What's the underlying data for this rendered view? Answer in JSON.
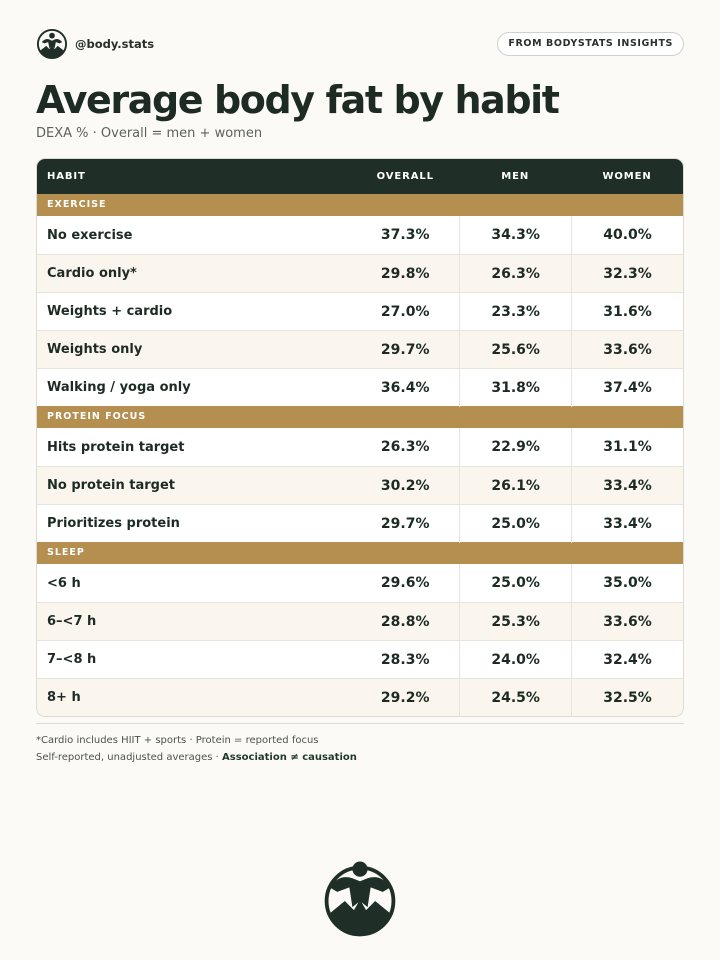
{
  "brand": {
    "handle": "@body.stats",
    "logo_icon": "mountain-figure-icon"
  },
  "header": {
    "source_label": "FROM BODYSTATS INSIGHTS"
  },
  "title": "Average body fat by habit",
  "subtitle": "DEXA % · Overall = men + women",
  "colors": {
    "header_bg": "#1f2f27",
    "section_bg": "#b58f4f",
    "text": "#1e2b24",
    "alt_row": "#faf6ee"
  },
  "chart_data": {
    "type": "table",
    "columns": [
      "HABIT",
      "OVERALL",
      "MEN",
      "WOMEN"
    ],
    "sections": [
      {
        "name": "EXERCISE",
        "rows": [
          {
            "habit": "No exercise",
            "overall": "37.3%",
            "men": "34.3%",
            "women": "40.0%"
          },
          {
            "habit": "Cardio only*",
            "overall": "29.8%",
            "men": "26.3%",
            "women": "32.3%"
          },
          {
            "habit": "Weights + cardio",
            "overall": "27.0%",
            "men": "23.3%",
            "women": "31.6%"
          },
          {
            "habit": "Weights only",
            "overall": "29.7%",
            "men": "25.6%",
            "women": "33.6%"
          },
          {
            "habit": "Walking / yoga only",
            "overall": "36.4%",
            "men": "31.8%",
            "women": "37.4%"
          }
        ]
      },
      {
        "name": "PROTEIN FOCUS",
        "rows": [
          {
            "habit": "Hits protein target",
            "overall": "26.3%",
            "men": "22.9%",
            "women": "31.1%"
          },
          {
            "habit": "No protein target",
            "overall": "30.2%",
            "men": "26.1%",
            "women": "33.4%"
          },
          {
            "habit": "Prioritizes protein",
            "overall": "29.7%",
            "men": "25.0%",
            "women": "33.4%"
          }
        ]
      },
      {
        "name": "SLEEP",
        "rows": [
          {
            "habit": "<6 h",
            "overall": "29.6%",
            "men": "25.0%",
            "women": "35.0%"
          },
          {
            "habit": "6–<7 h",
            "overall": "28.8%",
            "men": "25.3%",
            "women": "33.6%"
          },
          {
            "habit": "7–<8 h",
            "overall": "28.3%",
            "men": "24.0%",
            "women": "32.4%"
          },
          {
            "habit": "8+ h",
            "overall": "29.2%",
            "men": "24.5%",
            "women": "32.5%"
          }
        ]
      }
    ]
  },
  "footnotes": {
    "line1": "*Cardio includes HIIT + sports · Protein = reported focus",
    "line2_prefix": "Self-reported, unadjusted averages · ",
    "line2_bold": "Association ≠ causation"
  }
}
